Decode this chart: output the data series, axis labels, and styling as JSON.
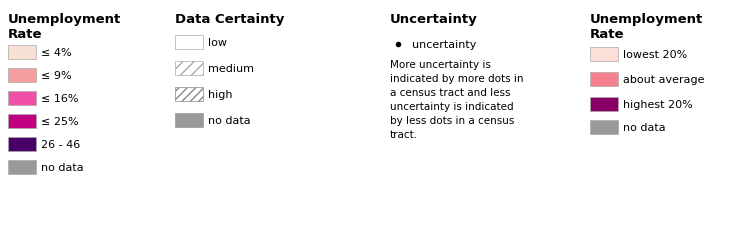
{
  "background": "#ffffff",
  "left_legend": {
    "title": "Unemployment\nRate",
    "items": [
      {
        "color": "#f9e0d4",
        "label": "≤ 4%"
      },
      {
        "color": "#f4a0a0",
        "label": "≤ 9%"
      },
      {
        "color": "#f050a8",
        "label": "≤ 16%"
      },
      {
        "color": "#c00080",
        "label": "≤ 25%"
      },
      {
        "color": "#480068",
        "label": "26 - 46"
      },
      {
        "color": "#999999",
        "label": "no data"
      }
    ]
  },
  "certainty_legend": {
    "title": "Data Certainty",
    "items": [
      {
        "pattern": "none",
        "fc": "#ffffff",
        "ec": "#aaaaaa",
        "label": "low"
      },
      {
        "pattern": "sparse_hatch",
        "fc": "#ffffff",
        "ec": "#aaaaaa",
        "label": "medium"
      },
      {
        "pattern": "dense_hatch",
        "fc": "#ffffff",
        "ec": "#888888",
        "label": "high"
      },
      {
        "pattern": "solid_gray",
        "fc": "#999999",
        "ec": "#999999",
        "label": "no data"
      }
    ]
  },
  "uncertainty_legend": {
    "title": "Uncertainty",
    "dot_label": "uncertainty",
    "description": "More uncertainty is\nindicated by more dots in\na census tract and less\nuncertainty is indicated\nby less dots in a census\ntract."
  },
  "right_legend": {
    "title": "Unemployment\nRate",
    "items": [
      {
        "color": "#fce0d8",
        "label": "lowest 20%"
      },
      {
        "color": "#f48090",
        "label": "about average"
      },
      {
        "color": "#880066",
        "label": "highest 20%"
      },
      {
        "color": "#999999",
        "label": "no data"
      }
    ]
  }
}
